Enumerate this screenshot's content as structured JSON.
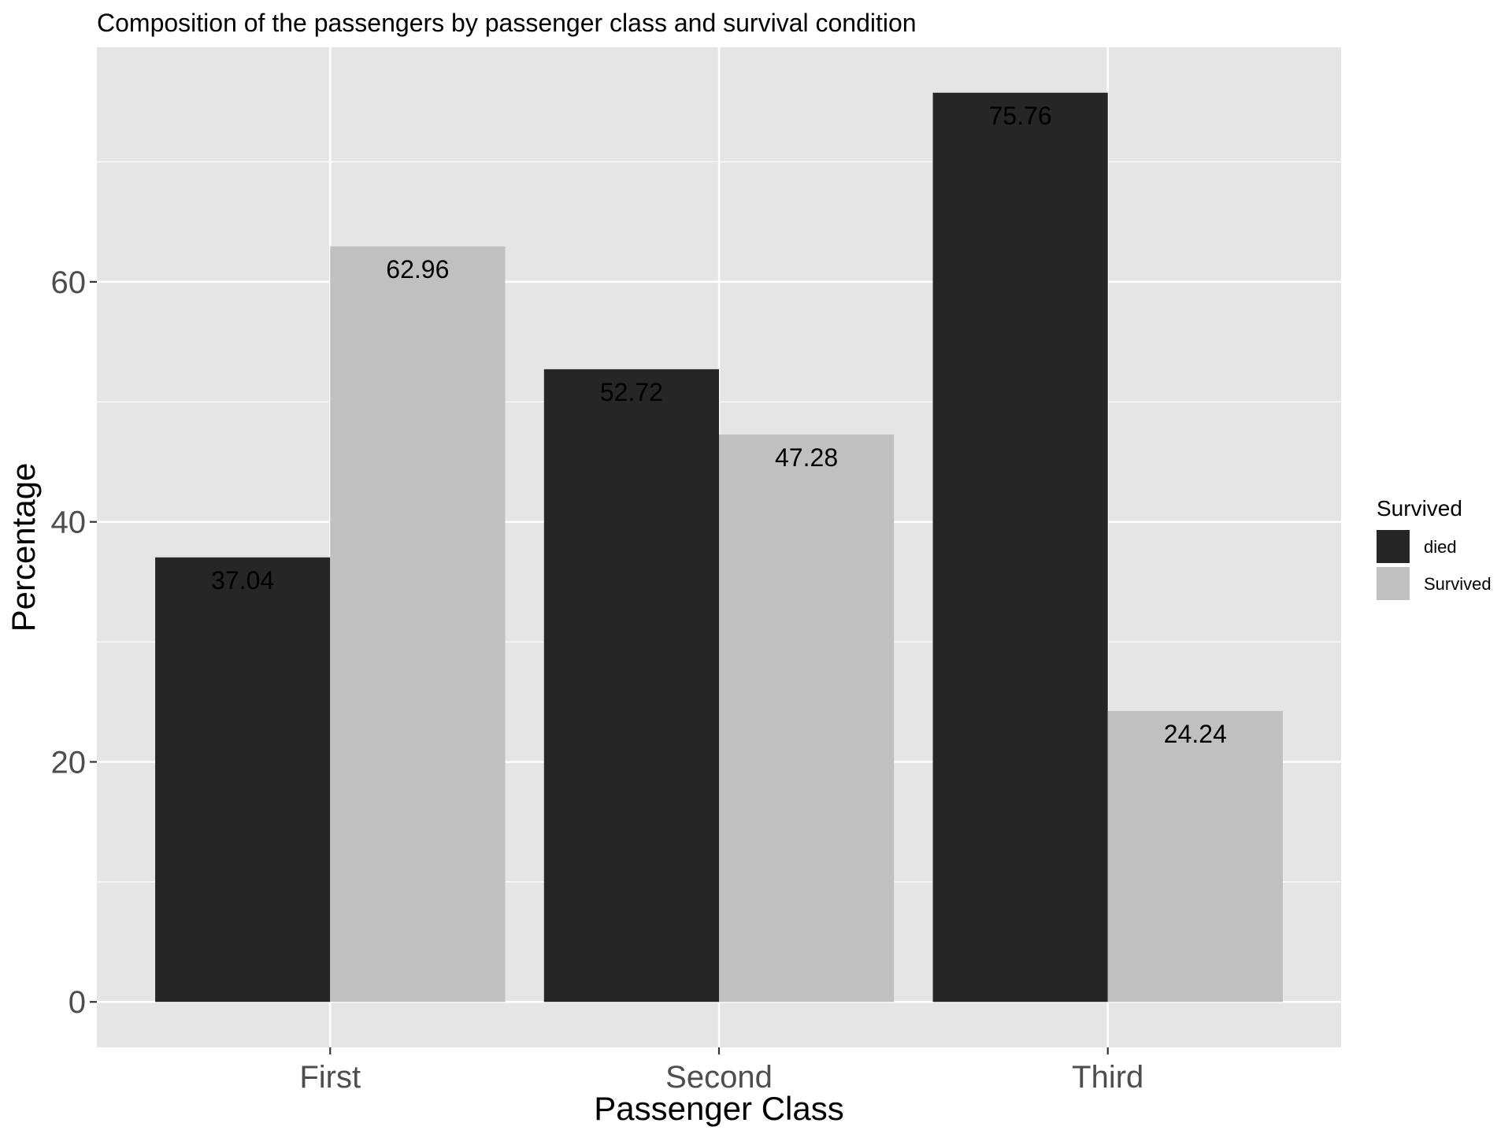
{
  "chart_data": {
    "type": "bar",
    "title": "Composition of the passengers by passenger class and survival condition",
    "xlabel": "Passenger Class",
    "ylabel": "Percentage",
    "categories": [
      "First",
      "Second",
      "Third"
    ],
    "series": [
      {
        "name": "died",
        "values": [
          37.04,
          52.72,
          75.76
        ],
        "color": "#262626"
      },
      {
        "name": "Survived",
        "values": [
          62.96,
          47.28,
          24.24
        ],
        "color": "#C0C0C0"
      }
    ],
    "data_labels": [
      [
        "37.04",
        "52.72",
        "75.76"
      ],
      [
        "62.96",
        "47.28",
        "24.24"
      ]
    ],
    "ylim": [
      -3.79,
      79.55
    ],
    "yticks": [
      0,
      20,
      40,
      60
    ],
    "y_tick_labels": [
      "0",
      "20",
      "40",
      "60"
    ],
    "legend": {
      "title": "Survived",
      "placement": "right"
    },
    "grid": true,
    "panel_background": "#E5E5E5",
    "grid_color": "#FFFFFF"
  }
}
